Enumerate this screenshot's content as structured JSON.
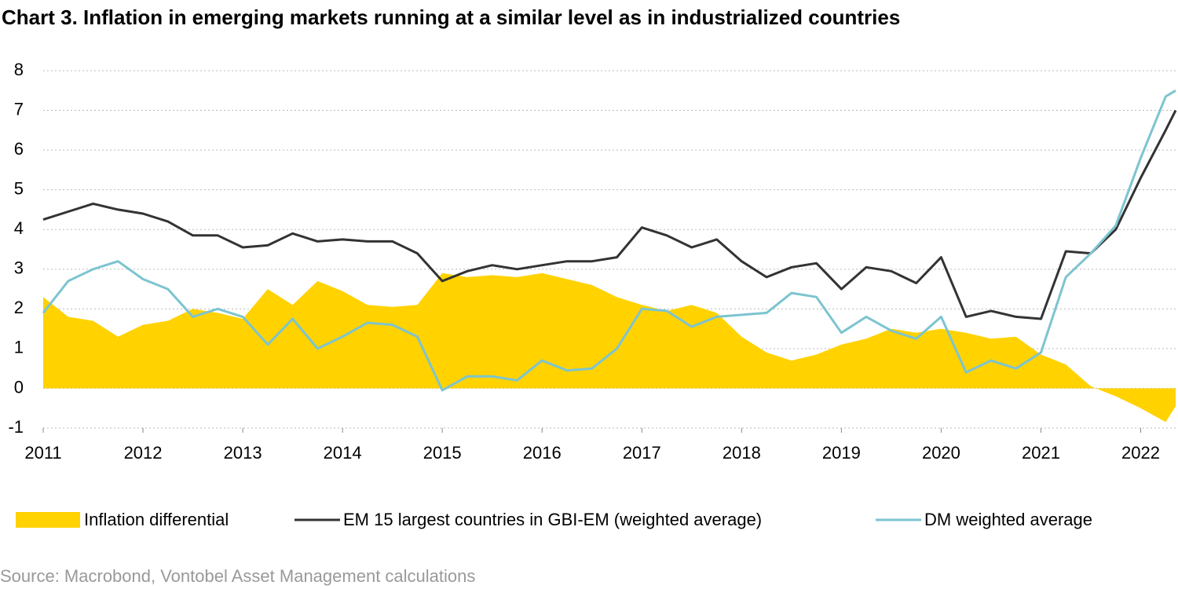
{
  "chart_data": {
    "type": "line",
    "title": "Chart 3. Inflation in emerging markets running at a similar level as in industrialized countries",
    "source": "Source: Macrobond, Vontobel Asset Management calculations",
    "x": [
      2011,
      2011.25,
      2011.5,
      2011.75,
      2012,
      2012.25,
      2012.5,
      2012.75,
      2013,
      2013.25,
      2013.5,
      2013.75,
      2014,
      2014.25,
      2014.5,
      2014.75,
      2015,
      2015.25,
      2015.5,
      2015.75,
      2016,
      2016.25,
      2016.5,
      2016.75,
      2017,
      2017.25,
      2017.5,
      2017.75,
      2018,
      2018.25,
      2018.5,
      2018.75,
      2019,
      2019.25,
      2019.5,
      2019.75,
      2020,
      2020.25,
      2020.5,
      2020.75,
      2021,
      2021.25,
      2021.5,
      2021.75,
      2022,
      2022.25,
      2022.35
    ],
    "series": [
      {
        "name": "Inflation differential",
        "kind": "area",
        "color": "#ffd200",
        "values": [
          2.3,
          1.8,
          1.7,
          1.3,
          1.6,
          1.7,
          2.0,
          1.9,
          1.75,
          2.5,
          2.1,
          2.7,
          2.45,
          2.1,
          2.05,
          2.1,
          2.9,
          2.8,
          2.85,
          2.8,
          2.9,
          2.75,
          2.6,
          2.3,
          2.1,
          1.95,
          2.1,
          1.9,
          1.3,
          0.9,
          0.7,
          0.85,
          1.1,
          1.25,
          1.5,
          1.4,
          1.5,
          1.4,
          1.25,
          1.3,
          0.85,
          0.6,
          0.05,
          -0.2,
          -0.5,
          -0.85,
          -0.45
        ]
      },
      {
        "name": "EM 15 largest countries in GBI-EM (weighted average)",
        "kind": "line",
        "color": "#333333",
        "values": [
          4.25,
          4.45,
          4.65,
          4.5,
          4.4,
          4.2,
          3.85,
          3.85,
          3.55,
          3.6,
          3.9,
          3.7,
          3.75,
          3.7,
          3.7,
          3.4,
          2.7,
          2.95,
          3.1,
          3.0,
          3.1,
          3.2,
          3.2,
          3.3,
          4.05,
          3.85,
          3.55,
          3.75,
          3.2,
          2.8,
          3.05,
          3.15,
          2.5,
          3.05,
          2.95,
          2.65,
          3.3,
          1.8,
          1.95,
          1.8,
          1.75,
          3.45,
          3.4,
          4.0,
          5.3,
          6.5,
          7.0
        ]
      },
      {
        "name": "DM weighted average",
        "kind": "line",
        "color": "#7cc4d0",
        "values": [
          1.9,
          2.7,
          3.0,
          3.2,
          2.75,
          2.5,
          1.8,
          2.0,
          1.8,
          1.1,
          1.75,
          1.0,
          1.3,
          1.65,
          1.6,
          1.3,
          -0.05,
          0.3,
          0.3,
          0.2,
          0.7,
          0.45,
          0.5,
          1.0,
          2.0,
          1.95,
          1.55,
          1.8,
          1.85,
          1.9,
          2.4,
          2.3,
          1.4,
          1.8,
          1.45,
          1.25,
          1.8,
          0.4,
          0.7,
          0.5,
          0.9,
          2.8,
          3.4,
          4.1,
          5.8,
          7.35,
          7.5
        ]
      }
    ],
    "xlim": [
      2011,
      2022.35
    ],
    "xticks": [
      2011,
      2012,
      2013,
      2014,
      2015,
      2016,
      2017,
      2018,
      2019,
      2020,
      2021,
      2022
    ],
    "ylim": [
      -1,
      8
    ],
    "yticks": [
      -1,
      0,
      1,
      2,
      3,
      4,
      5,
      6,
      7,
      8
    ],
    "grid": true,
    "legend": "bottom"
  }
}
